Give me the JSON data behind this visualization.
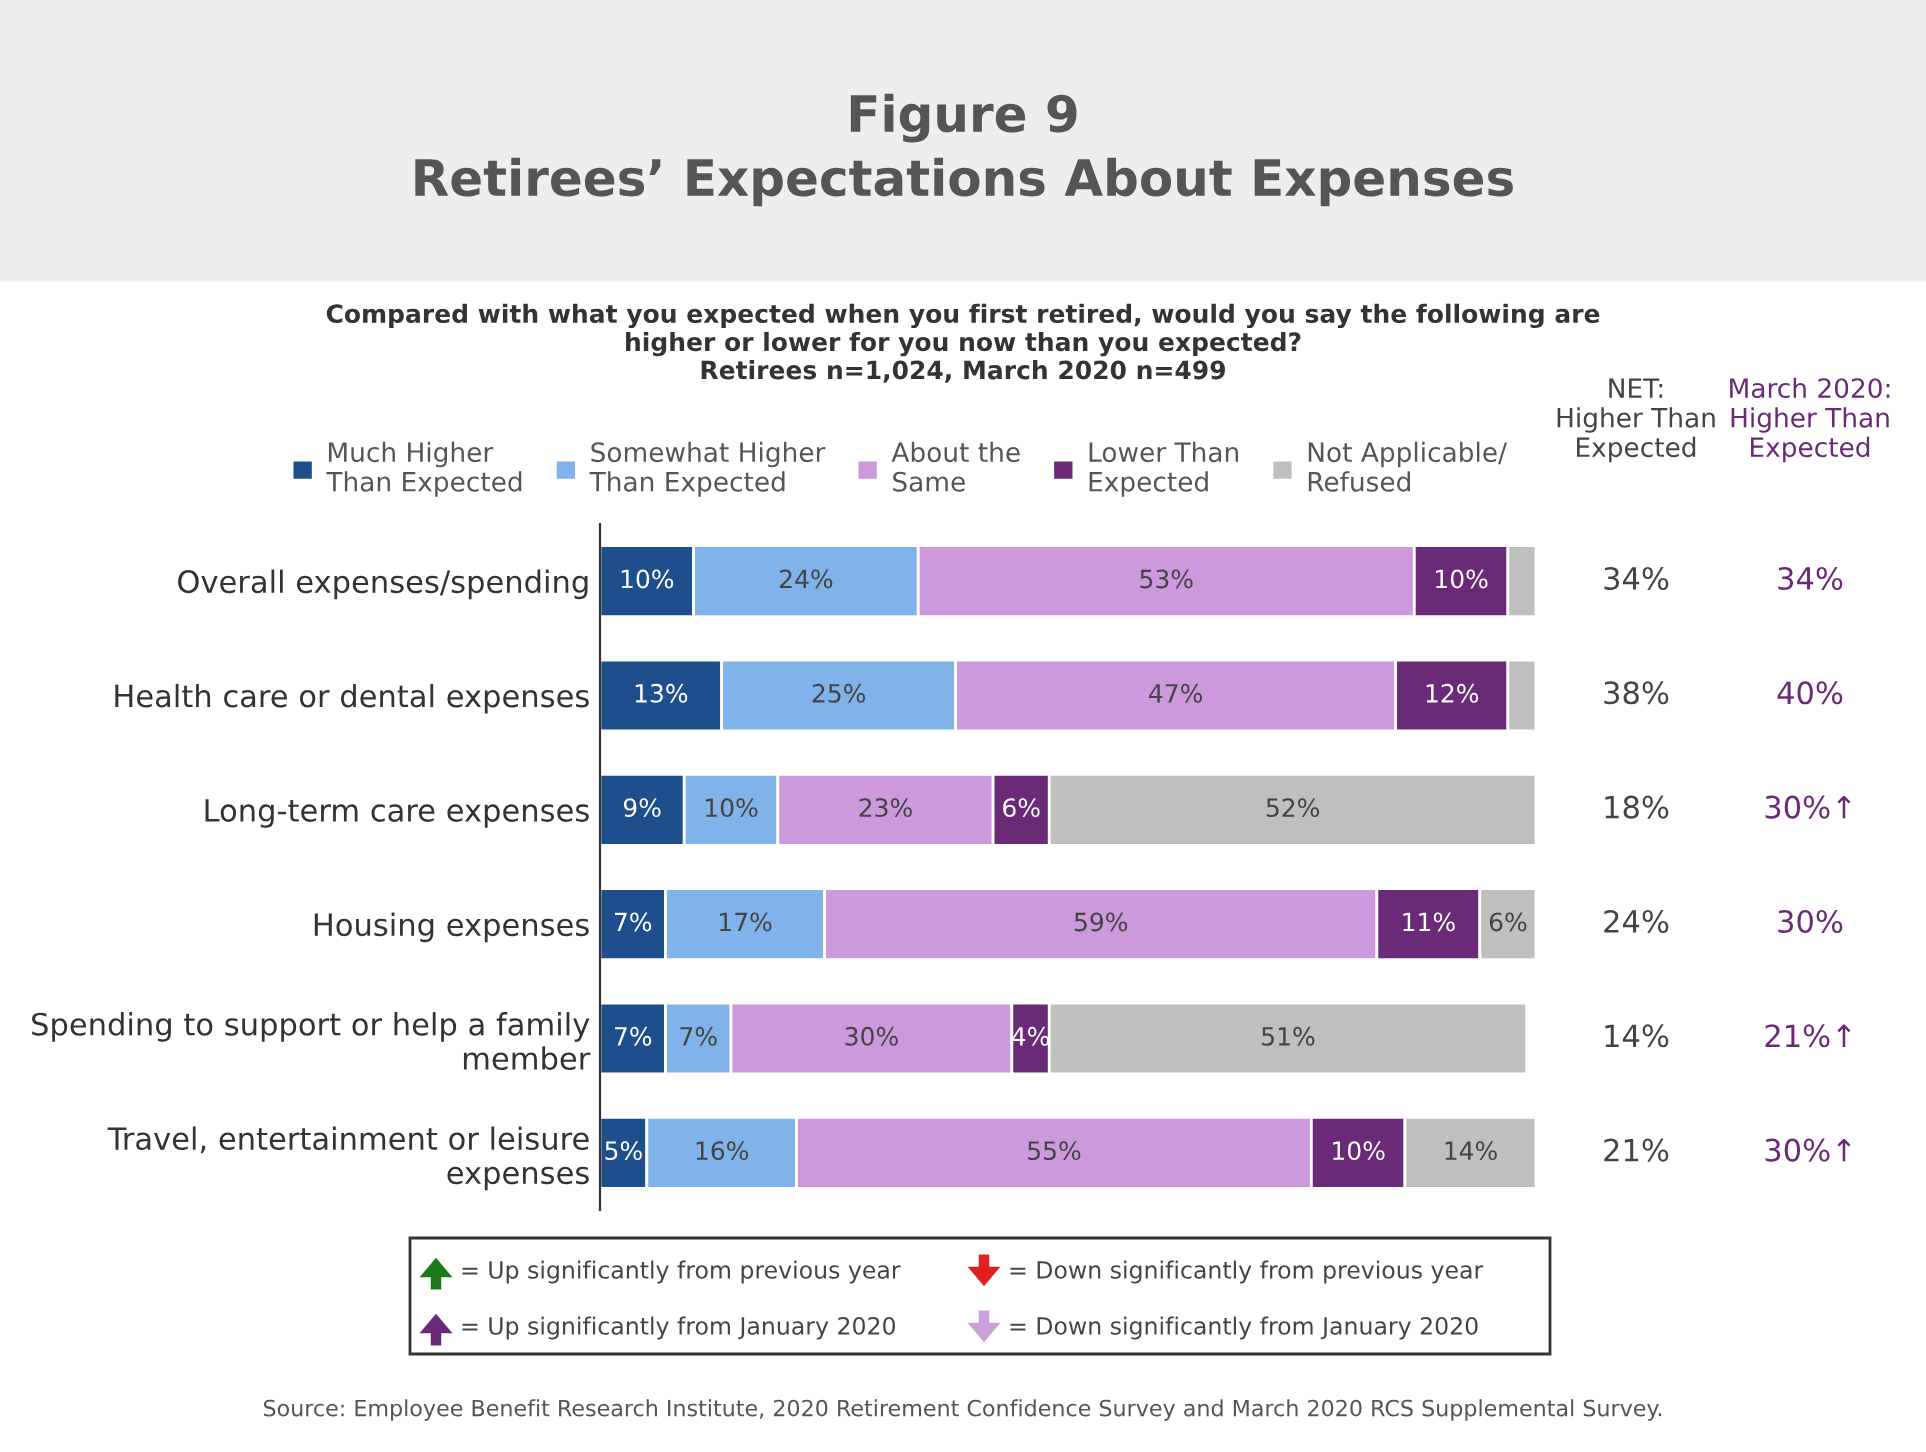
{
  "chart_data": {
    "type": "bar",
    "orientation": "horizontal",
    "stacked": true,
    "title": "Figure 9\nRetirees’ Expectations About Expenses",
    "subtitle": "Compared with what you expected when you first retired, would you say the following are\nhigher or lower for you now than you expected?\nRetirees n=1,024, March 2020 n=499",
    "categories": [
      "Overall expenses/spending",
      "Health care or dental expenses",
      "Long-term care expenses",
      "Housing expenses",
      "Spending to support or help a family\nmember",
      "Travel, entertainment or leisure\nexpenses"
    ],
    "series": [
      {
        "name": "Much Higher\nThan Expected",
        "color": "#1f4e8c",
        "values": [
          10,
          13,
          9,
          7,
          7,
          5
        ],
        "value_labels": [
          "10%",
          "13%",
          "9%",
          "7%",
          "7%",
          "5%"
        ]
      },
      {
        "name": "Somewhat Higher\nThan Expected",
        "color": "#80b3ea",
        "values": [
          24,
          25,
          10,
          17,
          7,
          16
        ],
        "value_labels": [
          "24%",
          "25%",
          "10%",
          "17%",
          "7%",
          "16%"
        ]
      },
      {
        "name": "About the\nSame",
        "color": "#cc99dd",
        "values": [
          53,
          47,
          23,
          59,
          30,
          55
        ],
        "value_labels": [
          "53%",
          "47%",
          "23%",
          "59%",
          "30%",
          "55%"
        ]
      },
      {
        "name": "Lower Than\nExpected",
        "color": "#6a2a78",
        "values": [
          10,
          12,
          6,
          11,
          4,
          10
        ],
        "value_labels": [
          "10%",
          "12%",
          "6%",
          "11%",
          "4%",
          "10%"
        ]
      },
      {
        "name": "Not Applicable/\nRefused",
        "color": "#bfbfbf",
        "values": [
          3,
          3,
          52,
          6,
          51,
          14
        ],
        "value_labels": [
          null,
          null,
          "52%",
          "6%",
          "51%",
          "14%"
        ]
      }
    ],
    "legend": "top",
    "annotations": [
      "NET:\nHigher Than\nExpected",
      "March 2020:\nHigher Than\nExpected",
      "34%",
      "38%",
      "18%",
      "24%",
      "14%",
      "21%",
      "34%",
      "40%",
      "30%↑",
      "30%",
      "21%↑",
      "30%↑",
      "= Up significantly from previous year",
      "= Down significantly from previous year",
      "= Up significantly from January 2020",
      "= Down significantly from January 2020",
      "Source: Employee Benefit Research Institute, 2020 Retirement Confidence Survey and March 2020 RCS Supplemental Survey."
    ]
  }
}
